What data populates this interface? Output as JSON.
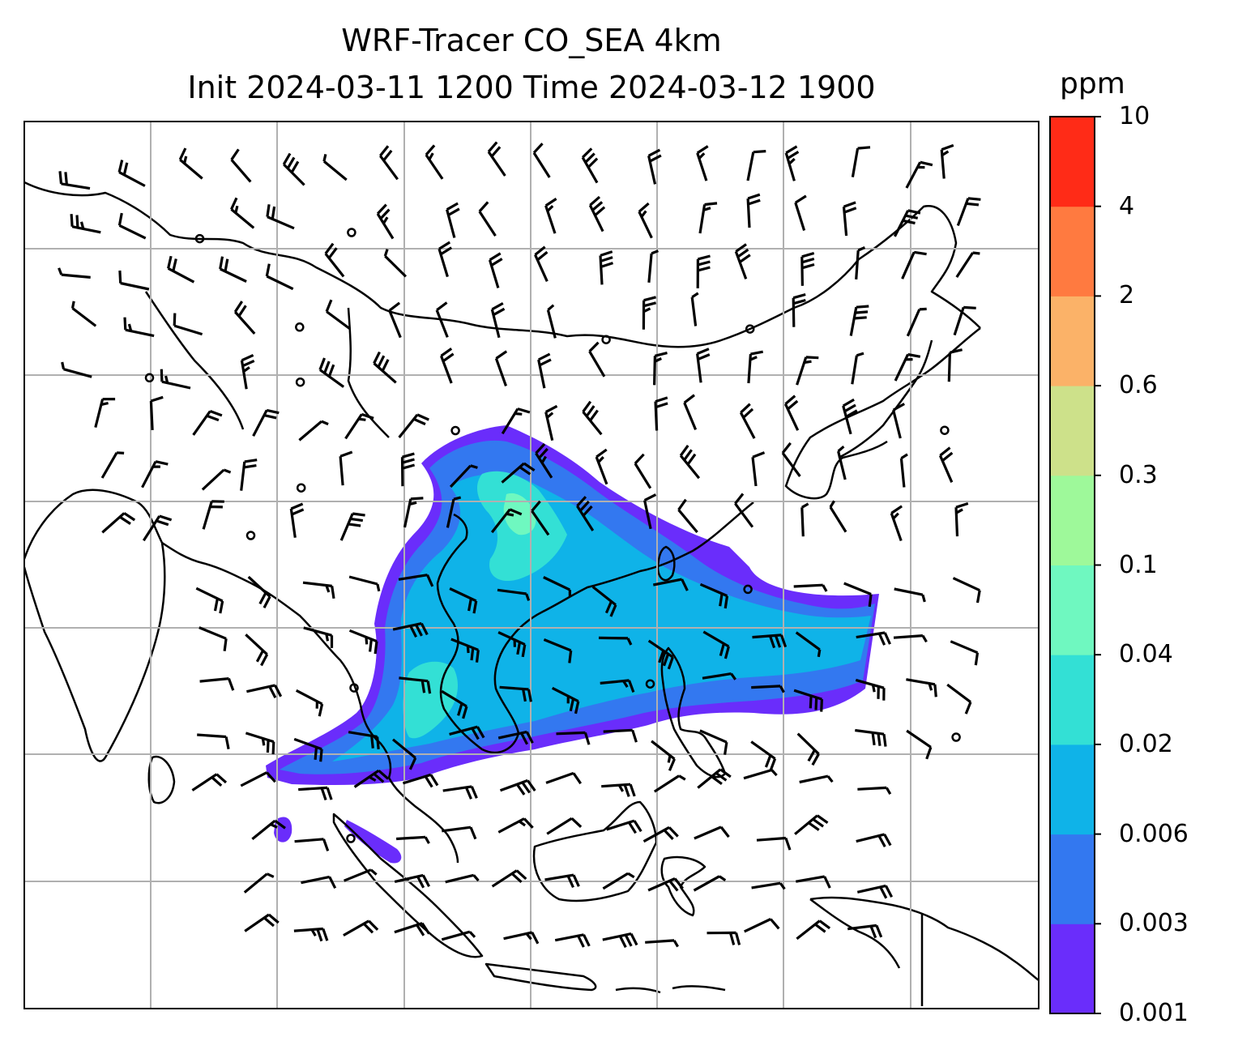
{
  "title": {
    "line1": "WRF-Tracer CO_SEA 4km",
    "line2": "Init 2024-03-11 1200 Time 2024-03-12 1900"
  },
  "colorbar": {
    "units": "ppm",
    "ticks": [
      "0.001",
      "0.003",
      "0.006",
      "0.02",
      "0.04",
      "0.1",
      "0.3",
      "0.6",
      "2",
      "4",
      "10"
    ],
    "colors": [
      "#6a2dfb",
      "#3378f0",
      "#0fb3e8",
      "#33e0d5",
      "#6ff8c0",
      "#9ef99a",
      "#cde18a",
      "#fbb268",
      "#ff7a40",
      "#ff2b17"
    ]
  },
  "map": {
    "type": "tracer-concentration-map",
    "field": "CO tracer (filled contours)",
    "overlay": "wind barbs",
    "coastlines": true,
    "gridlines": true
  }
}
